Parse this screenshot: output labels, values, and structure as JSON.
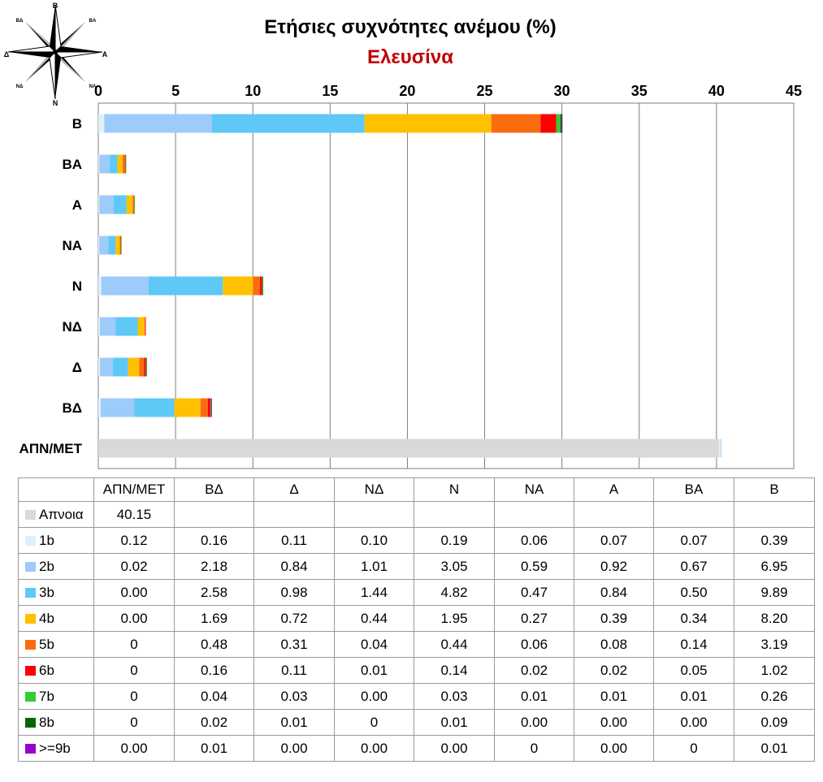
{
  "chart_data": {
    "type": "bar",
    "orientation": "horizontal",
    "stacked": true,
    "title": "Ετήσιες συχνότητες ανέμου (%)",
    "subtitle": "Ελευσίνα",
    "categories": [
      "Β",
      "ΒΑ",
      "Α",
      "ΝΑ",
      "Ν",
      "ΝΔ",
      "Δ",
      "ΒΔ",
      "ΑΠΝ/ΜΕΤ"
    ],
    "xlim": [
      0,
      45
    ],
    "x_ticks": [
      0,
      5,
      10,
      15,
      20,
      25,
      30,
      35,
      40,
      45
    ],
    "grid": true,
    "series": [
      {
        "name": "Απνοια",
        "color": "#d9d9d9",
        "values": [
          0,
          0,
          0,
          0,
          0,
          0,
          0,
          0,
          40.15
        ]
      },
      {
        "name": "1b",
        "color": "#ddf0fb",
        "values": [
          0.39,
          0.07,
          0.07,
          0.06,
          0.19,
          0.1,
          0.11,
          0.16,
          0.12
        ]
      },
      {
        "name": "2b",
        "color": "#9dcbfa",
        "values": [
          6.95,
          0.67,
          0.92,
          0.59,
          3.05,
          1.01,
          0.84,
          2.18,
          0.02
        ]
      },
      {
        "name": "3b",
        "color": "#5ec8f7",
        "values": [
          9.89,
          0.5,
          0.84,
          0.47,
          4.82,
          1.44,
          0.98,
          2.58,
          0.0
        ]
      },
      {
        "name": "4b",
        "color": "#ffc000",
        "values": [
          8.2,
          0.34,
          0.39,
          0.27,
          1.95,
          0.44,
          0.72,
          1.69,
          0.0
        ]
      },
      {
        "name": "5b",
        "color": "#fb6b10",
        "values": [
          3.19,
          0.14,
          0.08,
          0.06,
          0.44,
          0.04,
          0.31,
          0.48,
          0
        ]
      },
      {
        "name": "6b",
        "color": "#ff0000",
        "values": [
          1.02,
          0.05,
          0.02,
          0.02,
          0.14,
          0.01,
          0.11,
          0.16,
          0
        ]
      },
      {
        "name": "7b",
        "color": "#33cc33",
        "values": [
          0.26,
          0.01,
          0.01,
          0.01,
          0.03,
          0.0,
          0.03,
          0.04,
          0
        ]
      },
      {
        "name": "8b",
        "color": "#006600",
        "values": [
          0.09,
          0.0,
          0.0,
          0.0,
          0.01,
          0,
          0.01,
          0.02,
          0
        ]
      },
      {
        "name": ">=9b",
        "color": "#9900cc",
        "values": [
          0.01,
          0,
          0.0,
          0.0,
          0.0,
          0.0,
          0.0,
          0.01,
          0.0
        ]
      }
    ]
  },
  "compass": {
    "n": "Β",
    "ne": "ΒΑ",
    "e": "Α",
    "se": "ΝΑ",
    "s": "Ν",
    "sw": "ΝΔ",
    "w": "Δ",
    "nw": "ΒΔ"
  },
  "table": {
    "headers": [
      "ΑΠΝ/ΜΕΤ",
      "ΒΔ",
      "Δ",
      "ΝΔ",
      "Ν",
      "ΝΑ",
      "Α",
      "ΒΑ",
      "Β"
    ],
    "rows": [
      {
        "label": "Απνοια",
        "color": "#d9d9d9",
        "cells": [
          "40.15",
          "",
          "",
          "",
          "",
          "",
          "",
          "",
          ""
        ]
      },
      {
        "label": "1b",
        "color": "#ddf0fb",
        "cells": [
          "0.12",
          "0.16",
          "0.11",
          "0.10",
          "0.19",
          "0.06",
          "0.07",
          "0.07",
          "0.39"
        ]
      },
      {
        "label": "2b",
        "color": "#9dcbfa",
        "cells": [
          "0.02",
          "2.18",
          "0.84",
          "1.01",
          "3.05",
          "0.59",
          "0.92",
          "0.67",
          "6.95"
        ]
      },
      {
        "label": "3b",
        "color": "#5ec8f7",
        "cells": [
          "0.00",
          "2.58",
          "0.98",
          "1.44",
          "4.82",
          "0.47",
          "0.84",
          "0.50",
          "9.89"
        ]
      },
      {
        "label": "4b",
        "color": "#ffc000",
        "cells": [
          "0.00",
          "1.69",
          "0.72",
          "0.44",
          "1.95",
          "0.27",
          "0.39",
          "0.34",
          "8.20"
        ]
      },
      {
        "label": "5b",
        "color": "#fb6b10",
        "cells": [
          "0",
          "0.48",
          "0.31",
          "0.04",
          "0.44",
          "0.06",
          "0.08",
          "0.14",
          "3.19"
        ]
      },
      {
        "label": "6b",
        "color": "#ff0000",
        "cells": [
          "0",
          "0.16",
          "0.11",
          "0.01",
          "0.14",
          "0.02",
          "0.02",
          "0.05",
          "1.02"
        ]
      },
      {
        "label": "7b",
        "color": "#33cc33",
        "cells": [
          "0",
          "0.04",
          "0.03",
          "0.00",
          "0.03",
          "0.01",
          "0.01",
          "0.01",
          "0.26"
        ]
      },
      {
        "label": "8b",
        "color": "#006600",
        "cells": [
          "0",
          "0.02",
          "0.01",
          "0",
          "0.01",
          "0.00",
          "0.00",
          "0.00",
          "0.09"
        ]
      },
      {
        "label": ">=9b",
        "color": "#9900cc",
        "cells": [
          "0.00",
          "0.01",
          "0.00",
          "0.00",
          "0.00",
          "0",
          "0.00",
          "0",
          "0.01"
        ]
      }
    ]
  }
}
